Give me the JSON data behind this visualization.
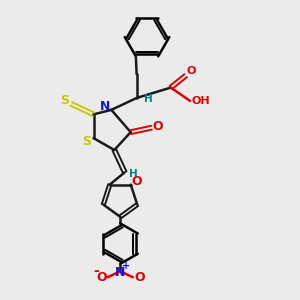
{
  "bg_color": "#ebebeb",
  "bond_color": "#1a1a1a",
  "N_color": "#1414e0",
  "O_color": "#e00000",
  "S_color": "#c8c800",
  "H_color": "#008080",
  "fig_size": [
    3.0,
    3.0
  ],
  "dpi": 100,
  "xlim": [
    0,
    10
  ],
  "ylim": [
    0,
    10
  ]
}
